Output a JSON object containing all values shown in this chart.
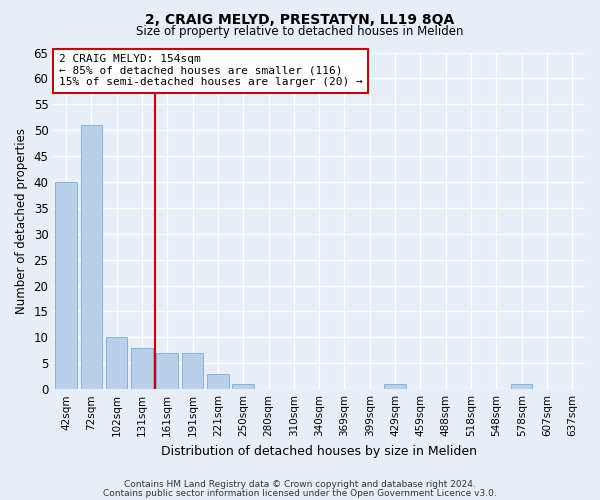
{
  "title": "2, CRAIG MELYD, PRESTATYN, LL19 8QA",
  "subtitle": "Size of property relative to detached houses in Meliden",
  "xlabel": "Distribution of detached houses by size in Meliden",
  "ylabel": "Number of detached properties",
  "footer_line1": "Contains HM Land Registry data © Crown copyright and database right 2024.",
  "footer_line2": "Contains public sector information licensed under the Open Government Licence v3.0.",
  "bins": [
    "42sqm",
    "72sqm",
    "102sqm",
    "131sqm",
    "161sqm",
    "191sqm",
    "221sqm",
    "250sqm",
    "280sqm",
    "310sqm",
    "340sqm",
    "369sqm",
    "399sqm",
    "429sqm",
    "459sqm",
    "488sqm",
    "518sqm",
    "548sqm",
    "578sqm",
    "607sqm",
    "637sqm"
  ],
  "values": [
    40,
    51,
    10,
    8,
    7,
    7,
    3,
    1,
    0,
    0,
    0,
    0,
    0,
    1,
    0,
    0,
    0,
    0,
    1,
    0,
    0
  ],
  "bar_color": "#b8d0ea",
  "bar_edge_color": "#7aadd4",
  "bg_color": "#e8eef8",
  "grid_color": "#ffffff",
  "marker_label": "2 CRAIG MELYD: 154sqm",
  "marker_line1": "← 85% of detached houses are smaller (116)",
  "marker_line2": "15% of semi-detached houses are larger (20) →",
  "marker_color": "#cc0000",
  "annotation_box_color": "#ffffff",
  "annotation_box_edge": "#cc0000",
  "ylim": [
    0,
    65
  ],
  "yticks": [
    0,
    5,
    10,
    15,
    20,
    25,
    30,
    35,
    40,
    45,
    50,
    55,
    60,
    65
  ]
}
